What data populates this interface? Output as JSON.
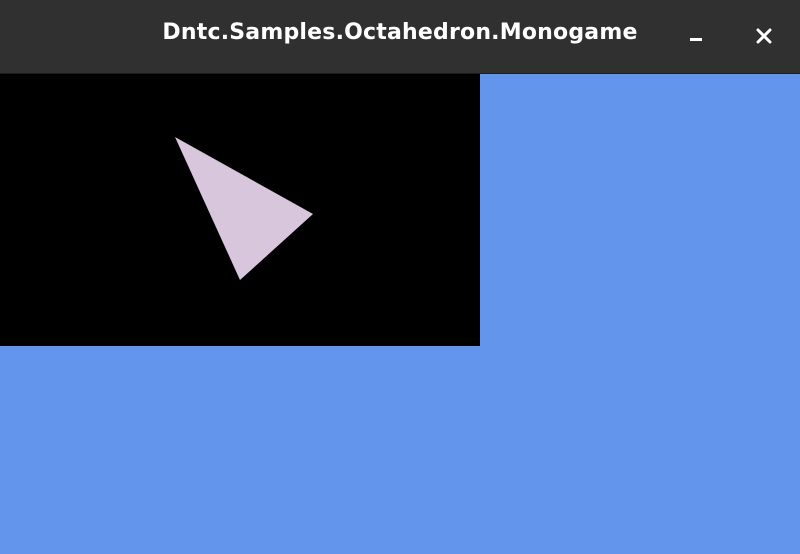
{
  "window": {
    "title": "Dntc.Samples.Octahedron.Monogame",
    "controls": {
      "minimize_icon": "minimize-icon",
      "close_icon": "close-icon"
    }
  },
  "colors": {
    "titlebar": "#303030",
    "title_text": "#ffffff",
    "client_background": "#6495ed",
    "viewport_background": "#000000",
    "shape_fill": "#d8c6dc"
  }
}
